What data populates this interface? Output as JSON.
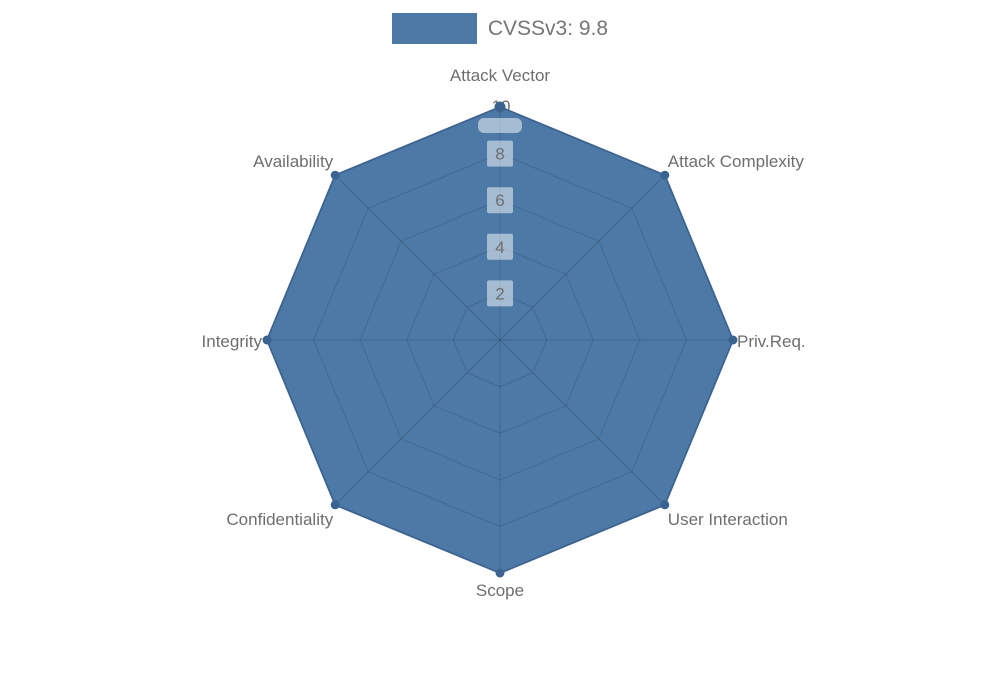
{
  "legend": {
    "label": "CVSSv3: 9.8",
    "swatch_color": "#4d79a7"
  },
  "chart_data": {
    "type": "radar",
    "title": "",
    "categories": [
      "Attack Vector",
      "Attack Complexity",
      "Priv.Req.",
      "User Interaction",
      "Scope",
      "Confidentiality",
      "Integrity",
      "Availability"
    ],
    "series": [
      {
        "name": "CVSSv3: 9.8",
        "values": [
          10,
          10,
          10,
          10,
          10,
          10,
          10,
          10
        ]
      }
    ],
    "ticks": [
      2,
      4,
      6,
      8,
      10
    ],
    "rmin": 0,
    "rmax": 10,
    "grid": true,
    "legend_position": "top",
    "colors": {
      "fill": "#4d79a7",
      "border": "#456e9e",
      "point": "#3a648f",
      "grid_line": "rgba(0,0,0,0.13)",
      "angle_line": "rgba(0,0,0,0.16)",
      "tick_text": "#6e6e6e",
      "tick_backdrop": "rgba(255,255,255,0.5)",
      "tick_backdrop_max": "#ffffff",
      "label_text": "#6e6e6e"
    }
  }
}
